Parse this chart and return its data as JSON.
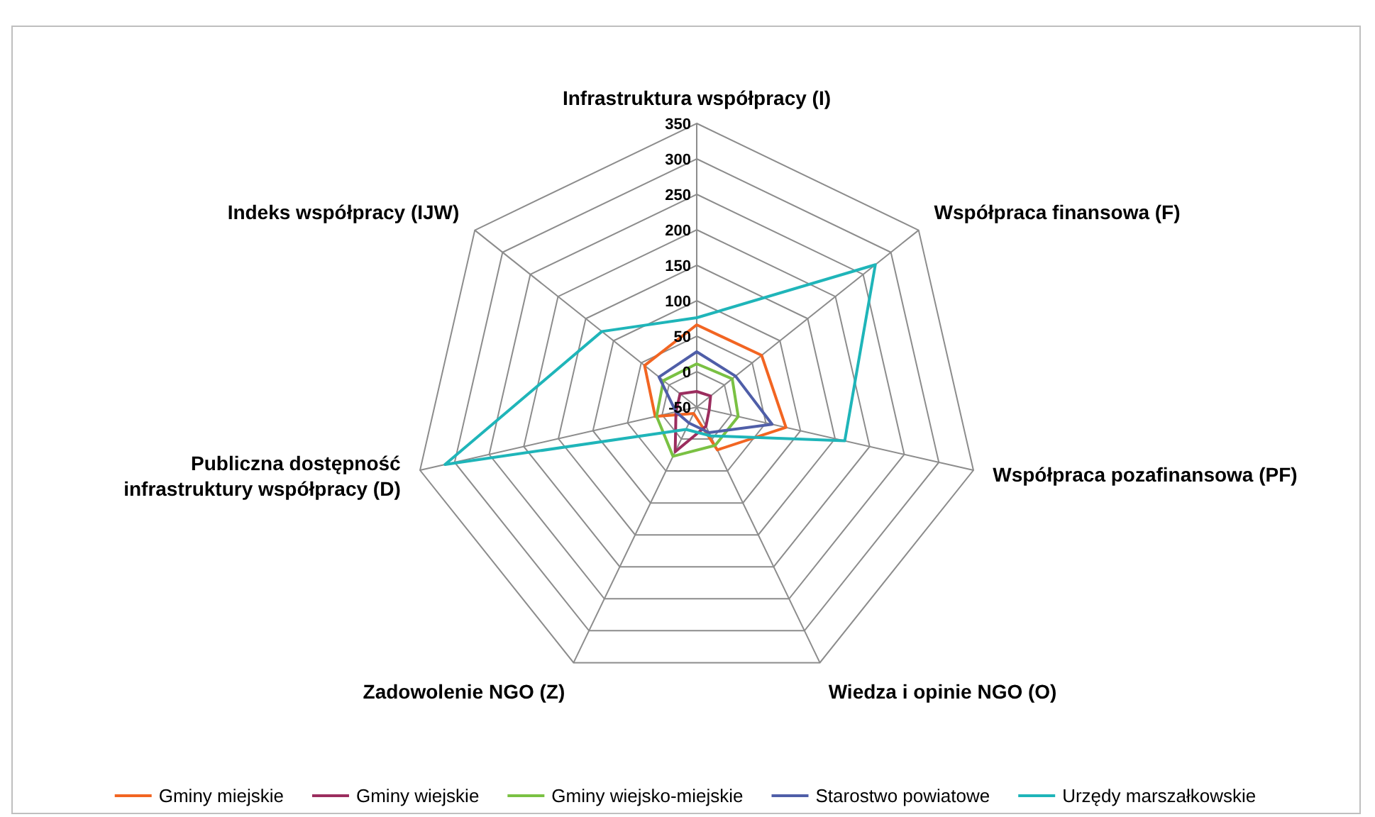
{
  "chart_data": {
    "type": "radar",
    "categories": [
      "Infrastruktura współpracy (I)",
      "Współpraca finansowa (F)",
      "Współpraca pozafinansowa (PF)",
      "Wiedza i opinie NGO (O)",
      "Zadowolenie NGO (Z)",
      "Publiczna dostępność\ninfrastruktury współpracy (D)",
      "Indeks współpracy (IJW)"
    ],
    "series": [
      {
        "name": "Gminy miejskie",
        "color": "#f26522",
        "values": [
          66,
          67,
          79,
          17,
          -40,
          10,
          44
        ]
      },
      {
        "name": "Gminy wiejskie",
        "color": "#9b2d5e",
        "values": [
          -28,
          -25,
          -32,
          -20,
          20,
          -20,
          -20
        ]
      },
      {
        "name": "Gminy wiejsko-miejskie",
        "color": "#7ac143",
        "values": [
          11,
          14,
          10,
          10,
          27,
          8,
          10
        ]
      },
      {
        "name": "Starostwo powiatowe",
        "color": "#4f5ea8",
        "values": [
          28,
          20,
          59,
          -10,
          -25,
          -20,
          18
        ]
      },
      {
        "name": "Urzędy marszałkowskie",
        "color": "#1fb5b9",
        "values": [
          76,
          272,
          164,
          -5,
          -15,
          314,
          121
        ]
      }
    ],
    "ylim": [
      -50,
      350
    ],
    "yticks": [
      -50,
      0,
      50,
      100,
      150,
      200,
      250,
      300,
      350
    ],
    "grid": true,
    "legend": "bottom",
    "marker": "none",
    "line_style": "solid"
  }
}
